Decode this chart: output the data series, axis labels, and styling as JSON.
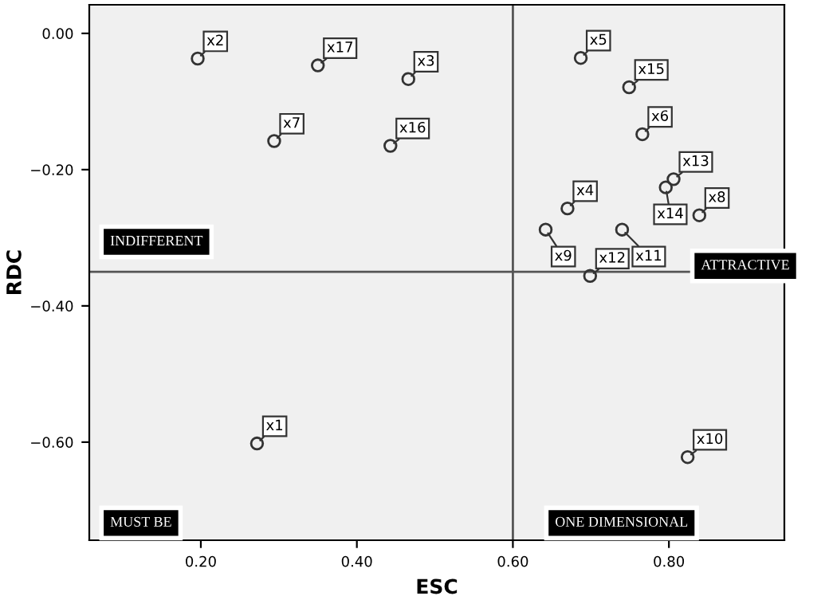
{
  "chart_data": {
    "type": "scatter",
    "xlabel": "ESC",
    "ylabel": "RDC",
    "x": [
      0.272,
      0.196,
      0.466,
      0.67,
      0.687,
      0.766,
      0.294,
      0.839,
      0.642,
      0.824,
      0.74,
      0.699,
      0.806,
      0.796,
      0.749,
      0.443,
      0.35
    ],
    "values": [
      -0.602,
      -0.037,
      -0.067,
      -0.257,
      -0.036,
      -0.148,
      -0.158,
      -0.267,
      -0.288,
      -0.622,
      -0.288,
      -0.356,
      -0.214,
      -0.226,
      -0.079,
      -0.165,
      -0.047
    ],
    "color": "#333333",
    "marker": "circle",
    "grid": false,
    "legend": false,
    "xlim": [
      0.057,
      0.948
    ],
    "ylim": [
      -0.744,
      0.042
    ],
    "xticks": [
      {
        "value": 0.2,
        "label": "0.20"
      },
      {
        "value": 0.4,
        "label": "0.40"
      },
      {
        "value": 0.6,
        "label": "0.60"
      },
      {
        "value": 0.8,
        "label": "0.80"
      }
    ],
    "yticks": [
      {
        "value": 0.0,
        "label": "0.00"
      },
      {
        "value": -0.2,
        "label": "−0.20"
      },
      {
        "value": -0.4,
        "label": "−0.40"
      },
      {
        "value": -0.6,
        "label": "−0.60"
      }
    ],
    "ref_lines": [
      {
        "axis": "x",
        "value": 0.6,
        "color": "#555555"
      },
      {
        "axis": "y",
        "value": -0.35,
        "color": "#555555"
      }
    ],
    "annotations": [
      {
        "text": "x1",
        "x": 0.272,
        "y": -0.602
      },
      {
        "text": "x2",
        "x": 0.196,
        "y": -0.037
      },
      {
        "text": "x3",
        "x": 0.466,
        "y": -0.067
      },
      {
        "text": "x4",
        "x": 0.67,
        "y": -0.257
      },
      {
        "text": "x5",
        "x": 0.687,
        "y": -0.036
      },
      {
        "text": "x6",
        "x": 0.766,
        "y": -0.148
      },
      {
        "text": "x7",
        "x": 0.294,
        "y": -0.158
      },
      {
        "text": "x8",
        "x": 0.839,
        "y": -0.267
      },
      {
        "text": "x9",
        "x": 0.642,
        "y": -0.288
      },
      {
        "text": "x10",
        "x": 0.824,
        "y": -0.622
      },
      {
        "text": "x11",
        "x": 0.74,
        "y": -0.288
      },
      {
        "text": "x12",
        "x": 0.699,
        "y": -0.356
      },
      {
        "text": "x13",
        "x": 0.806,
        "y": -0.214
      },
      {
        "text": "x14",
        "x": 0.796,
        "y": -0.226
      },
      {
        "text": "x15",
        "x": 0.749,
        "y": -0.079
      },
      {
        "text": "x16",
        "x": 0.443,
        "y": -0.165
      },
      {
        "text": "x17",
        "x": 0.35,
        "y": -0.047
      },
      "INDIFFERENT",
      "ATTRACTIVE",
      "MUST BE",
      "ONE DIMENSIONAL"
    ]
  }
}
